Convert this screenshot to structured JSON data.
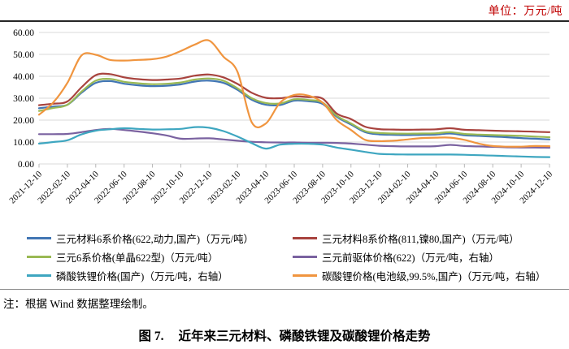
{
  "unit_label": "单位：万元/吨",
  "note": "注：根据 Wind 数据整理绘制。",
  "figure_caption": {
    "prefix": "图 7.",
    "title": "近年来三元材料、磷酸铁锂及碳酸锂价格走势"
  },
  "colors": {
    "unit_label": "#c00000",
    "grid": "#d9d9d9",
    "axis_tick": "#b7b7b7",
    "text": "#000000"
  },
  "chart_data": {
    "type": "line",
    "title": "近年来三元材料、磷酸铁锂及碳酸锂价格走势",
    "xlabel": "",
    "ylabel": "",
    "ylim": [
      0,
      60
    ],
    "y_tick_labels": [
      "0.00",
      "10.00",
      "20.00",
      "30.00",
      "40.00",
      "50.00",
      "60.00"
    ],
    "grid": "horizontal-only",
    "legend_position": "bottom",
    "value_reading_note": "右轴系列（右轴未显示刻度）数值按图中左轴刻度位置读取",
    "x_tick_labels": [
      "2021-12-10",
      "2022-02-10",
      "2022-04-10",
      "2022-06-10",
      "2022-08-10",
      "2022-10-10",
      "2022-12-10",
      "2023-02-10",
      "2023-04-10",
      "2023-06-10",
      "2023-08-10",
      "2023-10-10",
      "2023-12-10",
      "2024-02-10",
      "2024-04-10",
      "2024-06-10",
      "2024-08-10",
      "2024-10-10",
      "2024-12-10"
    ],
    "x_monthly": [
      "2021-12-10",
      "2022-01-10",
      "2022-02-10",
      "2022-03-10",
      "2022-04-10",
      "2022-05-10",
      "2022-06-10",
      "2022-07-10",
      "2022-08-10",
      "2022-09-10",
      "2022-10-10",
      "2022-11-10",
      "2022-12-10",
      "2023-01-10",
      "2023-02-10",
      "2023-03-10",
      "2023-04-10",
      "2023-05-10",
      "2023-06-10",
      "2023-07-10",
      "2023-08-10",
      "2023-09-10",
      "2023-10-10",
      "2023-11-10",
      "2023-12-10",
      "2024-01-10",
      "2024-02-10",
      "2024-03-10",
      "2024-04-10",
      "2024-05-10",
      "2024-06-10",
      "2024-07-10",
      "2024-08-10",
      "2024-09-10",
      "2024-10-10",
      "2024-11-10",
      "2024-12-10"
    ],
    "series": [
      {
        "name": "三元材料6系价格(622,动力,国产)（万元/吨）",
        "color": "#4276b4",
        "axis": "left",
        "values": [
          25.4,
          26.2,
          27.0,
          32.5,
          37.0,
          37.8,
          36.6,
          35.9,
          35.5,
          35.7,
          36.3,
          37.6,
          38.0,
          37.0,
          33.8,
          29.3,
          27.0,
          26.9,
          28.9,
          28.6,
          27.4,
          21.5,
          18.0,
          14.5,
          13.5,
          13.3,
          13.2,
          13.3,
          13.4,
          13.9,
          13.1,
          12.8,
          12.5,
          12.2,
          11.8,
          11.5,
          11.2
        ]
      },
      {
        "name": "三元材料8系价格(811,镍80,国产)（万元/吨）",
        "color": "#a8433e",
        "axis": "left",
        "values": [
          26.8,
          27.5,
          28.5,
          35.0,
          40.5,
          41.0,
          39.5,
          38.7,
          38.3,
          38.5,
          39.0,
          40.3,
          40.8,
          39.5,
          36.5,
          32.5,
          30.2,
          30.0,
          30.8,
          30.5,
          29.8,
          23.0,
          20.5,
          17.0,
          15.9,
          15.7,
          15.6,
          15.7,
          15.8,
          16.3,
          15.6,
          15.4,
          15.2,
          15.0,
          14.9,
          14.7,
          14.5
        ]
      },
      {
        "name": "三元6系价格(单晶622型)（万元/吨）",
        "color": "#9ab954",
        "axis": "left",
        "values": [
          24.2,
          25.5,
          27.0,
          33.0,
          38.0,
          38.8,
          37.5,
          36.8,
          36.4,
          36.6,
          37.2,
          38.5,
          39.0,
          38.0,
          34.5,
          30.0,
          27.8,
          27.6,
          29.5,
          29.2,
          28.0,
          22.0,
          18.5,
          15.0,
          14.1,
          13.9,
          13.8,
          13.9,
          14.0,
          14.5,
          13.7,
          13.4,
          13.2,
          13.0,
          12.8,
          12.5,
          12.2
        ]
      },
      {
        "name": "三元前驱体价格(622)（万元/吨，右轴）",
        "color": "#7a62a0",
        "axis": "right",
        "values": [
          13.6,
          13.6,
          13.7,
          14.5,
          15.5,
          16.0,
          15.5,
          14.8,
          14.0,
          13.0,
          11.5,
          11.6,
          11.7,
          11.2,
          10.6,
          10.1,
          9.9,
          9.8,
          9.8,
          9.7,
          9.7,
          9.6,
          9.3,
          8.8,
          8.3,
          8.1,
          8.0,
          8.0,
          8.1,
          8.7,
          8.2,
          8.0,
          7.8,
          7.6,
          7.5,
          7.5,
          7.4
        ]
      },
      {
        "name": "磷酸铁锂价格(国产)（万元/吨，右轴）",
        "color": "#3ea6c0",
        "axis": "right",
        "values": [
          9.3,
          10.0,
          10.8,
          13.5,
          15.2,
          15.8,
          16.3,
          16.0,
          15.7,
          15.8,
          16.0,
          16.8,
          16.5,
          15.0,
          12.5,
          9.5,
          7.0,
          8.8,
          9.2,
          9.2,
          8.8,
          7.5,
          6.5,
          5.5,
          4.6,
          4.4,
          4.3,
          4.3,
          4.3,
          4.3,
          4.2,
          4.0,
          3.8,
          3.6,
          3.4,
          3.2,
          3.1
        ]
      },
      {
        "name": "碳酸锂价格(电池级,99.5%,国产)（万元/吨，右轴）",
        "color": "#f0953f",
        "axis": "right",
        "values": [
          22.5,
          28.0,
          37.0,
          49.5,
          49.8,
          47.5,
          47.2,
          47.5,
          47.8,
          49.0,
          51.5,
          54.5,
          56.3,
          49.0,
          42.0,
          19.0,
          18.5,
          28.0,
          31.5,
          31.2,
          28.0,
          20.0,
          15.5,
          11.0,
          10.4,
          10.6,
          11.2,
          11.8,
          12.0,
          12.0,
          11.0,
          9.3,
          8.2,
          7.9,
          7.9,
          8.2,
          8.1
        ]
      }
    ]
  }
}
